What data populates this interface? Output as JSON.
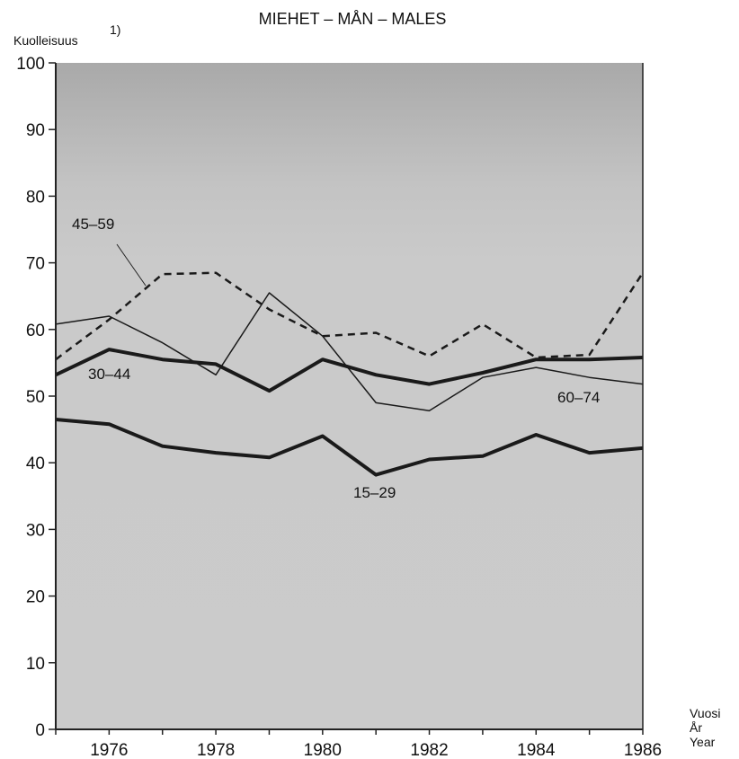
{
  "chart_data": {
    "type": "line",
    "title": "MIEHET – MÅN – MALES",
    "ylabel": "Kuolleisuus",
    "ylabel_superscript": "1)",
    "xlabel_lines": [
      "Vuosi",
      "År",
      "Year"
    ],
    "ylim": [
      0,
      100
    ],
    "xlim": [
      1975,
      1986
    ],
    "yticks": [
      "0",
      "10",
      "20",
      "30",
      "40",
      "50",
      "60",
      "70",
      "80",
      "90",
      "100"
    ],
    "xticks": [
      "1976",
      "1978",
      "1980",
      "1982",
      "1984",
      "1986"
    ],
    "x": [
      1975,
      1976,
      1977,
      1978,
      1979,
      1980,
      1981,
      1982,
      1983,
      1984,
      1985,
      1986
    ],
    "series": [
      {
        "name": "15–29",
        "style": "thick",
        "values": [
          46.5,
          45.8,
          42.5,
          41.5,
          40.8,
          44.0,
          38.2,
          40.5,
          41.0,
          44.2,
          41.5,
          42.2
        ]
      },
      {
        "name": "30–44",
        "style": "thick",
        "values": [
          53.2,
          57.0,
          55.5,
          54.8,
          50.8,
          55.5,
          53.2,
          51.8,
          53.5,
          55.5,
          55.5,
          55.8
        ]
      },
      {
        "name": "45–59",
        "style": "thin",
        "values": [
          60.8,
          62.0,
          58.0,
          53.2,
          65.5,
          59.0,
          49.0,
          47.8,
          52.8,
          54.3,
          52.8,
          51.8
        ]
      },
      {
        "name": "60–74",
        "style": "dashed",
        "values": [
          55.5,
          61.5,
          68.3,
          68.5,
          63.0,
          59.0,
          59.5,
          56.0,
          60.8,
          55.8,
          56.2,
          68.5
        ]
      }
    ],
    "colors": {
      "plot_bg": "#c9c9c9",
      "plot_bg_top": "#a8a8a8",
      "line": "#1a1a1a"
    }
  }
}
